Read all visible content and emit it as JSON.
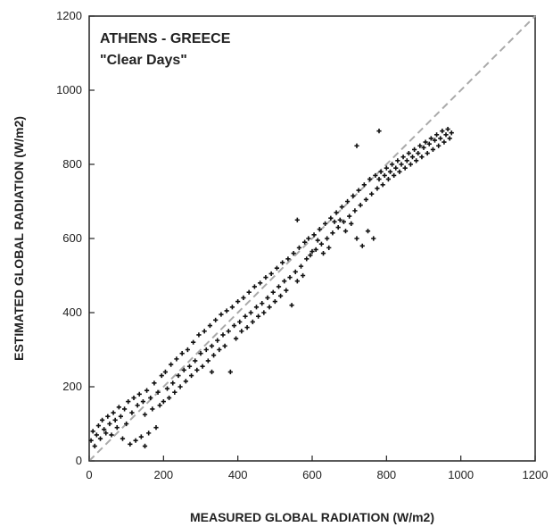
{
  "chart_data": {
    "type": "scatter",
    "annotations": [
      "ATHENS - GREECE",
      "\"Clear Days\""
    ],
    "xlabel": "MEASURED GLOBAL RADIATION (W/m2)",
    "ylabel": "ESTIMATED GLOBAL RADIATION (W/m2)",
    "xlim": [
      0,
      1200
    ],
    "ylim": [
      0,
      1200
    ],
    "xticks": [
      0,
      200,
      400,
      600,
      800,
      1000,
      1200
    ],
    "yticks": [
      0,
      200,
      400,
      600,
      800,
      1000,
      1200
    ],
    "grid": false,
    "reference_line": {
      "type": "1:1",
      "style": "dashed",
      "color": "#aaaaaa"
    },
    "series": [
      {
        "marker": "plus",
        "color": "#111111",
        "points": [
          [
            5,
            55
          ],
          [
            10,
            80
          ],
          [
            15,
            40
          ],
          [
            20,
            70
          ],
          [
            25,
            95
          ],
          [
            30,
            60
          ],
          [
            35,
            110
          ],
          [
            40,
            85
          ],
          [
            45,
            75
          ],
          [
            50,
            120
          ],
          [
            55,
            100
          ],
          [
            60,
            70
          ],
          [
            65,
            130
          ],
          [
            70,
            110
          ],
          [
            75,
            90
          ],
          [
            80,
            145
          ],
          [
            85,
            120
          ],
          [
            90,
            60
          ],
          [
            95,
            140
          ],
          [
            100,
            100
          ],
          [
            105,
            160
          ],
          [
            110,
            45
          ],
          [
            115,
            130
          ],
          [
            120,
            170
          ],
          [
            125,
            55
          ],
          [
            130,
            150
          ],
          [
            135,
            180
          ],
          [
            140,
            65
          ],
          [
            145,
            160
          ],
          [
            150,
            125
          ],
          [
            155,
            190
          ],
          [
            160,
            75
          ],
          [
            165,
            170
          ],
          [
            170,
            140
          ],
          [
            175,
            210
          ],
          [
            180,
            90
          ],
          [
            185,
            185
          ],
          [
            190,
            150
          ],
          [
            195,
            230
          ],
          [
            200,
            160
          ],
          [
            205,
            240
          ],
          [
            210,
            195
          ],
          [
            215,
            170
          ],
          [
            220,
            260
          ],
          [
            225,
            210
          ],
          [
            230,
            185
          ],
          [
            235,
            275
          ],
          [
            240,
            230
          ],
          [
            245,
            200
          ],
          [
            250,
            290
          ],
          [
            255,
            245
          ],
          [
            260,
            215
          ],
          [
            265,
            300
          ],
          [
            270,
            255
          ],
          [
            275,
            230
          ],
          [
            280,
            320
          ],
          [
            285,
            270
          ],
          [
            290,
            245
          ],
          [
            295,
            340
          ],
          [
            300,
            290
          ],
          [
            305,
            255
          ],
          [
            310,
            350
          ],
          [
            315,
            300
          ],
          [
            320,
            270
          ],
          [
            325,
            365
          ],
          [
            330,
            310
          ],
          [
            335,
            285
          ],
          [
            340,
            380
          ],
          [
            345,
            325
          ],
          [
            350,
            300
          ],
          [
            355,
            395
          ],
          [
            360,
            340
          ],
          [
            365,
            310
          ],
          [
            370,
            405
          ],
          [
            375,
            350
          ],
          [
            380,
            240
          ],
          [
            385,
            415
          ],
          [
            390,
            365
          ],
          [
            395,
            330
          ],
          [
            400,
            430
          ],
          [
            405,
            375
          ],
          [
            410,
            350
          ],
          [
            415,
            440
          ],
          [
            420,
            390
          ],
          [
            425,
            360
          ],
          [
            430,
            455
          ],
          [
            435,
            400
          ],
          [
            440,
            375
          ],
          [
            445,
            470
          ],
          [
            450,
            415
          ],
          [
            455,
            390
          ],
          [
            460,
            480
          ],
          [
            465,
            425
          ],
          [
            470,
            400
          ],
          [
            475,
            495
          ],
          [
            480,
            440
          ],
          [
            485,
            415
          ],
          [
            490,
            505
          ],
          [
            495,
            455
          ],
          [
            500,
            430
          ],
          [
            505,
            520
          ],
          [
            510,
            470
          ],
          [
            515,
            445
          ],
          [
            520,
            535
          ],
          [
            525,
            485
          ],
          [
            530,
            460
          ],
          [
            535,
            545
          ],
          [
            540,
            495
          ],
          [
            545,
            420
          ],
          [
            550,
            560
          ],
          [
            555,
            510
          ],
          [
            560,
            485
          ],
          [
            565,
            575
          ],
          [
            570,
            525
          ],
          [
            575,
            500
          ],
          [
            580,
            590
          ],
          [
            585,
            545
          ],
          [
            590,
            600
          ],
          [
            595,
            555
          ],
          [
            600,
            565
          ],
          [
            605,
            610
          ],
          [
            610,
            570
          ],
          [
            615,
            595
          ],
          [
            620,
            625
          ],
          [
            625,
            585
          ],
          [
            630,
            560
          ],
          [
            635,
            640
          ],
          [
            640,
            600
          ],
          [
            645,
            575
          ],
          [
            650,
            655
          ],
          [
            655,
            615
          ],
          [
            660,
            645
          ],
          [
            665,
            670
          ],
          [
            670,
            630
          ],
          [
            675,
            650
          ],
          [
            680,
            685
          ],
          [
            685,
            645
          ],
          [
            690,
            620
          ],
          [
            695,
            700
          ],
          [
            700,
            660
          ],
          [
            705,
            640
          ],
          [
            710,
            715
          ],
          [
            715,
            675
          ],
          [
            720,
            600
          ],
          [
            725,
            730
          ],
          [
            730,
            690
          ],
          [
            735,
            580
          ],
          [
            740,
            745
          ],
          [
            745,
            705
          ],
          [
            750,
            620
          ],
          [
            755,
            760
          ],
          [
            760,
            720
          ],
          [
            765,
            600
          ],
          [
            770,
            770
          ],
          [
            775,
            735
          ],
          [
            780,
            760
          ],
          [
            785,
            780
          ],
          [
            790,
            745
          ],
          [
            795,
            770
          ],
          [
            800,
            790
          ],
          [
            805,
            760
          ],
          [
            810,
            780
          ],
          [
            815,
            800
          ],
          [
            820,
            770
          ],
          [
            825,
            790
          ],
          [
            830,
            810
          ],
          [
            835,
            780
          ],
          [
            840,
            800
          ],
          [
            845,
            820
          ],
          [
            850,
            790
          ],
          [
            855,
            810
          ],
          [
            860,
            830
          ],
          [
            865,
            800
          ],
          [
            870,
            820
          ],
          [
            875,
            840
          ],
          [
            880,
            810
          ],
          [
            885,
            830
          ],
          [
            890,
            850
          ],
          [
            895,
            820
          ],
          [
            900,
            845
          ],
          [
            905,
            860
          ],
          [
            910,
            830
          ],
          [
            915,
            855
          ],
          [
            920,
            870
          ],
          [
            925,
            840
          ],
          [
            930,
            865
          ],
          [
            935,
            880
          ],
          [
            940,
            850
          ],
          [
            945,
            870
          ],
          [
            950,
            890
          ],
          [
            955,
            860
          ],
          [
            960,
            880
          ],
          [
            965,
            895
          ],
          [
            970,
            870
          ],
          [
            975,
            885
          ],
          [
            780,
            890
          ],
          [
            720,
            850
          ],
          [
            560,
            650
          ],
          [
            330,
            240
          ],
          [
            150,
            40
          ]
        ]
      }
    ]
  }
}
